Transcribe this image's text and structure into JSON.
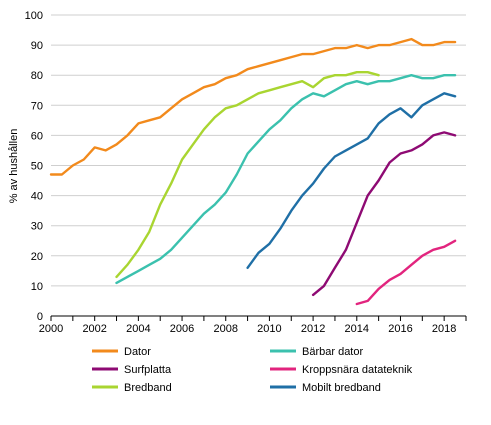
{
  "chart_data": {
    "type": "line",
    "title": "",
    "xlabel": "",
    "ylabel": "% av hushållen",
    "xlim": [
      2000,
      2019
    ],
    "ylim": [
      0,
      100
    ],
    "x_ticks": [
      "2000",
      "2002",
      "2004",
      "2006",
      "2008",
      "2010",
      "2012",
      "2014",
      "2016",
      "2018"
    ],
    "y_ticks": [
      "0",
      "10",
      "20",
      "30",
      "40",
      "50",
      "60",
      "70",
      "80",
      "90",
      "100"
    ],
    "grid": "horizontal",
    "legend": "bottom, two columns",
    "series": [
      {
        "name": "Dator",
        "color": "#f28a1c",
        "points": [
          [
            2000.0,
            47
          ],
          [
            2000.5,
            47
          ],
          [
            2001.0,
            50
          ],
          [
            2001.5,
            52
          ],
          [
            2002.0,
            56
          ],
          [
            2002.5,
            55
          ],
          [
            2003.0,
            57
          ],
          [
            2003.5,
            60
          ],
          [
            2004.0,
            64
          ],
          [
            2004.5,
            65
          ],
          [
            2005.0,
            66
          ],
          [
            2005.5,
            69
          ],
          [
            2006.0,
            72
          ],
          [
            2006.5,
            74
          ],
          [
            2007.0,
            76
          ],
          [
            2007.5,
            77
          ],
          [
            2008.0,
            79
          ],
          [
            2008.5,
            80
          ],
          [
            2009.0,
            82
          ],
          [
            2009.5,
            83
          ],
          [
            2010.0,
            84
          ],
          [
            2010.5,
            85
          ],
          [
            2011.0,
            86
          ],
          [
            2011.5,
            87
          ],
          [
            2012.0,
            87
          ],
          [
            2012.5,
            88
          ],
          [
            2013.0,
            89
          ],
          [
            2013.5,
            89
          ],
          [
            2014.0,
            90
          ],
          [
            2014.5,
            89
          ],
          [
            2015.0,
            90
          ],
          [
            2015.5,
            90
          ],
          [
            2016.0,
            91
          ],
          [
            2016.5,
            92
          ],
          [
            2017.0,
            90
          ],
          [
            2017.5,
            90
          ],
          [
            2018.0,
            91
          ],
          [
            2018.5,
            91
          ]
        ]
      },
      {
        "name": "Bärbar dator",
        "color": "#3bc1ae",
        "points": [
          [
            2003.0,
            11
          ],
          [
            2003.5,
            13
          ],
          [
            2004.0,
            15
          ],
          [
            2004.5,
            17
          ],
          [
            2005.0,
            19
          ],
          [
            2005.5,
            22
          ],
          [
            2006.0,
            26
          ],
          [
            2006.5,
            30
          ],
          [
            2007.0,
            34
          ],
          [
            2007.5,
            37
          ],
          [
            2008.0,
            41
          ],
          [
            2008.5,
            47
          ],
          [
            2009.0,
            54
          ],
          [
            2009.5,
            58
          ],
          [
            2010.0,
            62
          ],
          [
            2010.5,
            65
          ],
          [
            2011.0,
            69
          ],
          [
            2011.5,
            72
          ],
          [
            2012.0,
            74
          ],
          [
            2012.5,
            73
          ],
          [
            2013.0,
            75
          ],
          [
            2013.5,
            77
          ],
          [
            2014.0,
            78
          ],
          [
            2014.5,
            77
          ],
          [
            2015.0,
            78
          ],
          [
            2015.5,
            78
          ],
          [
            2016.0,
            79
          ],
          [
            2016.5,
            80
          ],
          [
            2017.0,
            79
          ],
          [
            2017.5,
            79
          ],
          [
            2018.0,
            80
          ],
          [
            2018.5,
            80
          ]
        ]
      },
      {
        "name": "Surfplatta",
        "color": "#8e0a73",
        "points": [
          [
            2012.0,
            7
          ],
          [
            2012.5,
            10
          ],
          [
            2013.0,
            16
          ],
          [
            2013.5,
            22
          ],
          [
            2014.0,
            31
          ],
          [
            2014.5,
            40
          ],
          [
            2015.0,
            45
          ],
          [
            2015.5,
            51
          ],
          [
            2016.0,
            54
          ],
          [
            2016.5,
            55
          ],
          [
            2017.0,
            57
          ],
          [
            2017.5,
            60
          ],
          [
            2018.0,
            61
          ],
          [
            2018.5,
            60
          ]
        ]
      },
      {
        "name": "Kroppsnära datateknik",
        "color": "#e2247e",
        "points": [
          [
            2014.0,
            4
          ],
          [
            2014.5,
            5
          ],
          [
            2015.0,
            9
          ],
          [
            2015.5,
            12
          ],
          [
            2016.0,
            14
          ],
          [
            2016.5,
            17
          ],
          [
            2017.0,
            20
          ],
          [
            2017.5,
            22
          ],
          [
            2018.0,
            23
          ],
          [
            2018.5,
            25
          ]
        ]
      },
      {
        "name": "Bredband",
        "color": "#a9d531",
        "points": [
          [
            2003.0,
            13
          ],
          [
            2003.5,
            17
          ],
          [
            2004.0,
            22
          ],
          [
            2004.5,
            28
          ],
          [
            2005.0,
            37
          ],
          [
            2005.5,
            44
          ],
          [
            2006.0,
            52
          ],
          [
            2006.5,
            57
          ],
          [
            2007.0,
            62
          ],
          [
            2007.5,
            66
          ],
          [
            2008.0,
            69
          ],
          [
            2008.5,
            70
          ],
          [
            2009.0,
            72
          ],
          [
            2009.5,
            74
          ],
          [
            2010.0,
            75
          ],
          [
            2010.5,
            76
          ],
          [
            2011.0,
            77
          ],
          [
            2011.5,
            78
          ],
          [
            2012.0,
            76
          ],
          [
            2012.5,
            79
          ],
          [
            2013.0,
            80
          ],
          [
            2013.5,
            80
          ],
          [
            2014.0,
            81
          ],
          [
            2014.5,
            81
          ],
          [
            2015.0,
            80
          ]
        ]
      },
      {
        "name": "Mobilt bredband",
        "color": "#1f6fa6",
        "points": [
          [
            2009.0,
            16
          ],
          [
            2009.5,
            21
          ],
          [
            2010.0,
            24
          ],
          [
            2010.5,
            29
          ],
          [
            2011.0,
            35
          ],
          [
            2011.5,
            40
          ],
          [
            2012.0,
            44
          ],
          [
            2012.5,
            49
          ],
          [
            2013.0,
            53
          ],
          [
            2013.5,
            55
          ],
          [
            2014.0,
            57
          ],
          [
            2014.5,
            59
          ],
          [
            2015.0,
            64
          ],
          [
            2015.5,
            67
          ],
          [
            2016.0,
            69
          ],
          [
            2016.5,
            66
          ],
          [
            2017.0,
            70
          ],
          [
            2017.5,
            72
          ],
          [
            2018.0,
            74
          ],
          [
            2018.5,
            73
          ]
        ]
      }
    ]
  }
}
